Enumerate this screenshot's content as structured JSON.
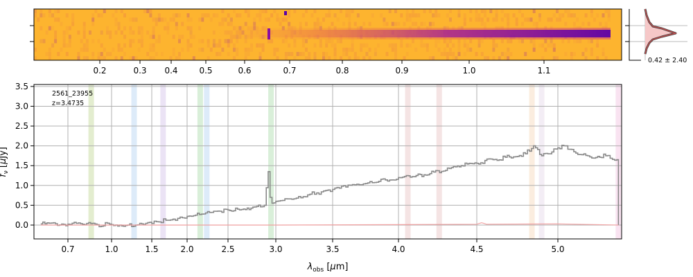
{
  "chart_data": {
    "type": "line",
    "annotation": {
      "id": "2561_23955",
      "redshift": "z=3.4735"
    },
    "xlabel": "$\\lambda_{\\rm obs}$ [$\\mu$m]",
    "ylabel": "$f_\\nu$ [$\\mu$Jy]",
    "xlim": [
      0.6,
      5.4
    ],
    "ylim": [
      -0.35,
      3.55
    ],
    "x_ticks": [
      0.7,
      1.0,
      1.5,
      2.0,
      2.5,
      3.0,
      3.5,
      4.0,
      4.5,
      5.0
    ],
    "x_tick_labels": [
      "0.7",
      "1.0",
      "1.5",
      "2.0",
      "2.5",
      "3.0",
      "3.5",
      "4.0",
      "4.5",
      "5.0"
    ],
    "y_ticks": [
      0.0,
      0.5,
      1.0,
      1.5,
      2.0,
      2.5,
      3.0,
      3.5
    ],
    "y_tick_labels": [
      "0.0",
      "0.5",
      "1.0",
      "1.5",
      "2.0",
      "2.5",
      "3.0",
      "3.5"
    ],
    "grid": true,
    "series": [
      {
        "color": "#888888",
        "style": "step",
        "x": [
          0.62,
          0.8,
          0.9,
          1.0,
          1.1,
          1.2,
          1.3,
          1.4,
          1.5,
          1.6,
          1.7,
          1.8,
          1.9,
          2.0,
          2.1,
          2.2,
          2.3,
          2.4,
          2.5,
          2.6,
          2.7,
          2.8,
          2.88,
          2.92,
          2.94,
          2.96,
          3.0,
          3.1,
          3.2,
          3.3,
          3.4,
          3.5,
          3.6,
          3.7,
          3.8,
          3.9,
          4.0,
          4.05,
          4.1,
          4.2,
          4.3,
          4.4,
          4.5,
          4.6,
          4.7,
          4.8,
          4.85,
          4.9,
          4.95,
          5.0,
          5.05,
          5.1,
          5.2,
          5.3,
          5.37,
          5.38
        ],
        "y": [
          0.03,
          0.02,
          0.01,
          0.01,
          0.0,
          0.0,
          0.0,
          0.01,
          0.04,
          0.08,
          0.12,
          0.15,
          0.2,
          0.22,
          0.25,
          0.28,
          0.32,
          0.35,
          0.38,
          0.4,
          0.43,
          0.47,
          0.5,
          1.35,
          0.7,
          0.55,
          0.6,
          0.66,
          0.72,
          0.78,
          0.84,
          0.9,
          0.96,
          1.02,
          1.07,
          1.14,
          1.2,
          1.25,
          1.22,
          1.3,
          1.38,
          1.5,
          1.56,
          1.65,
          1.72,
          1.8,
          2.0,
          1.75,
          1.8,
          1.95,
          2.0,
          1.85,
          1.72,
          1.75,
          1.65,
          0.0
        ]
      },
      {
        "color": "#f0a0a0",
        "style": "line",
        "x": [
          0.62,
          1.0,
          2.0,
          3.0,
          4.0,
          4.5,
          4.53,
          4.56,
          5.0,
          5.38
        ],
        "y": [
          0.0,
          0.0,
          0.0,
          0.0,
          0.01,
          0.02,
          0.06,
          0.02,
          0.03,
          0.0
        ]
      }
    ],
    "line_markers": [
      {
        "x": 0.86,
        "color": "#c8dca0"
      },
      {
        "x": 1.28,
        "color": "#bcd8f4"
      },
      {
        "x": 1.66,
        "color": "#d8c8ec"
      },
      {
        "x": 2.16,
        "color": "#b4e0b4"
      },
      {
        "x": 2.24,
        "color": "#bcd8f4"
      },
      {
        "x": 2.95,
        "color": "#b4e0b4"
      },
      {
        "x": 4.06,
        "color": "#eccaca"
      },
      {
        "x": 4.26,
        "color": "#eccaca"
      },
      {
        "x": 4.84,
        "color": "#f8dcc0"
      },
      {
        "x": 4.9,
        "color": "#e8dcec"
      },
      {
        "x": 5.38,
        "color": "#f4c8e4"
      }
    ],
    "spectrum_2d": {
      "top_x_ticks": [
        0.2,
        0.3,
        0.4,
        0.5,
        0.6,
        0.7,
        0.8,
        0.9,
        1.0,
        1.1
      ],
      "top_x_tick_labels": [
        "0.2",
        "0.3",
        "0.4",
        "0.5",
        "0.6",
        "0.7",
        "0.8",
        "0.9",
        "1.0",
        "1.1"
      ],
      "colormap": [
        "#fdb42f",
        "#e8704f",
        "#9c179e",
        "#5c01a6"
      ]
    },
    "profile_panel": {
      "label": "0.42 ± 2.40"
    }
  }
}
